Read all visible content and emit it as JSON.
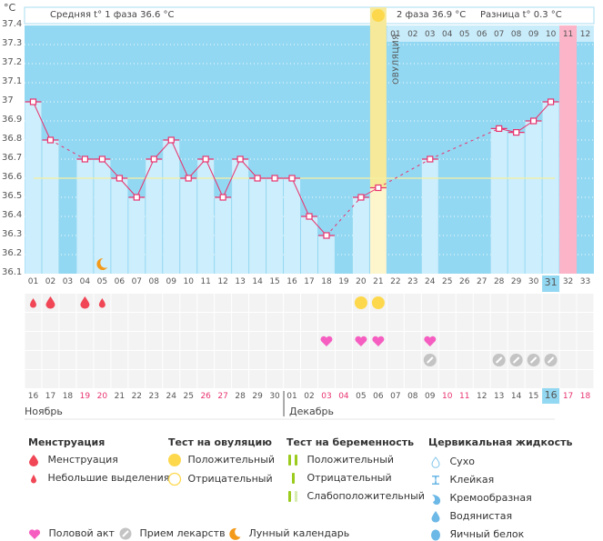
{
  "header": {
    "unit": "°C",
    "phase1_label": "Средняя t° 1 фаза 36.6 °C",
    "phase2_label": "2 фаза 36.9 °C",
    "diff_label": "Разница t° 0.3 °C",
    "ovulation_label": "ОВУЛЯЦИЯ"
  },
  "colors": {
    "background": "#93d8f2",
    "bar": "#cdeefc",
    "line": "#e8326e",
    "ovulation": "#f6e99a",
    "period": "#fbb4c8",
    "average_line": "#f7f0a0",
    "weekend": "#e8326e",
    "highlight": "#93d8f2"
  },
  "chart_data": {
    "type": "line",
    "title": "",
    "ylabel": "°C",
    "ylim": [
      36.1,
      37.4
    ],
    "yticks": [
      "37.4",
      "37.3",
      "37.2",
      "37.1",
      "37",
      "36.9",
      "36.8",
      "36.7",
      "36.6",
      "36.5",
      "36.4",
      "36.3",
      "36.2",
      "36.1"
    ],
    "cycle_days": [
      "01",
      "02",
      "03",
      "04",
      "05",
      "06",
      "07",
      "08",
      "09",
      "10",
      "11",
      "12",
      "13",
      "14",
      "15",
      "16",
      "17",
      "18",
      "19",
      "20",
      "21",
      "22",
      "23",
      "24",
      "25",
      "26",
      "27",
      "28",
      "29",
      "30",
      "31",
      "32",
      "33"
    ],
    "temperatures": [
      37.0,
      36.8,
      null,
      36.7,
      36.7,
      36.6,
      36.5,
      36.7,
      36.8,
      36.6,
      36.7,
      36.5,
      36.7,
      36.6,
      36.6,
      36.6,
      36.4,
      36.3,
      null,
      36.5,
      36.55,
      null,
      null,
      36.7,
      null,
      null,
      null,
      36.86,
      36.84,
      36.9,
      37.0,
      null,
      null
    ],
    "average_phase1": 36.6,
    "ovulation_day": 21,
    "top_cycle_labels": [
      "01",
      "02",
      "03",
      "04",
      "05",
      "06",
      "07",
      "08",
      "09",
      "10",
      "11",
      "12"
    ],
    "next_period_top_label": "11",
    "period_forecast_day": 32,
    "current_day": 31,
    "calendar_dates": [
      "16",
      "17",
      "18",
      "19",
      "20",
      "21",
      "22",
      "23",
      "24",
      "25",
      "26",
      "27",
      "28",
      "29",
      "30",
      "01",
      "02",
      "03",
      "04",
      "05",
      "06",
      "07",
      "08",
      "09",
      "10",
      "11",
      "12",
      "13",
      "14",
      "15",
      "16",
      "17",
      "18"
    ],
    "weekend_dates_idx": [
      3,
      4,
      10,
      11,
      17,
      18,
      24,
      25,
      31,
      32
    ],
    "months": [
      "Ноябрь",
      "Декабрь"
    ],
    "menstruation": {
      "1": "small",
      "2": "large",
      "4": "large",
      "5": "small"
    },
    "ovulation_test_positive": [
      20,
      21
    ],
    "intercourse": [
      18,
      20,
      21,
      24
    ],
    "medication": [
      24,
      28,
      29,
      30,
      31
    ],
    "lunar": [
      5
    ]
  },
  "legend": {
    "menstruation": {
      "title": "Менструация",
      "items": [
        "Менструация",
        "Небольшие выделения"
      ]
    },
    "ovulation_test": {
      "title": "Тест на овуляцию",
      "items": [
        "Положительный",
        "Отрицательный"
      ]
    },
    "pregnancy_test": {
      "title": "Тест на беременность",
      "items": [
        "Положительный",
        "Отрицательный",
        "Слабоположительный"
      ]
    },
    "cervical": {
      "title": "Цервикальная жидкость",
      "items": [
        "Сухо",
        "Клейкая",
        "Кремообразная",
        "Водянистая",
        "Яичный белок"
      ]
    },
    "bottom": [
      "Половой акт",
      "Прием лекарств",
      "Лунный календарь"
    ]
  }
}
